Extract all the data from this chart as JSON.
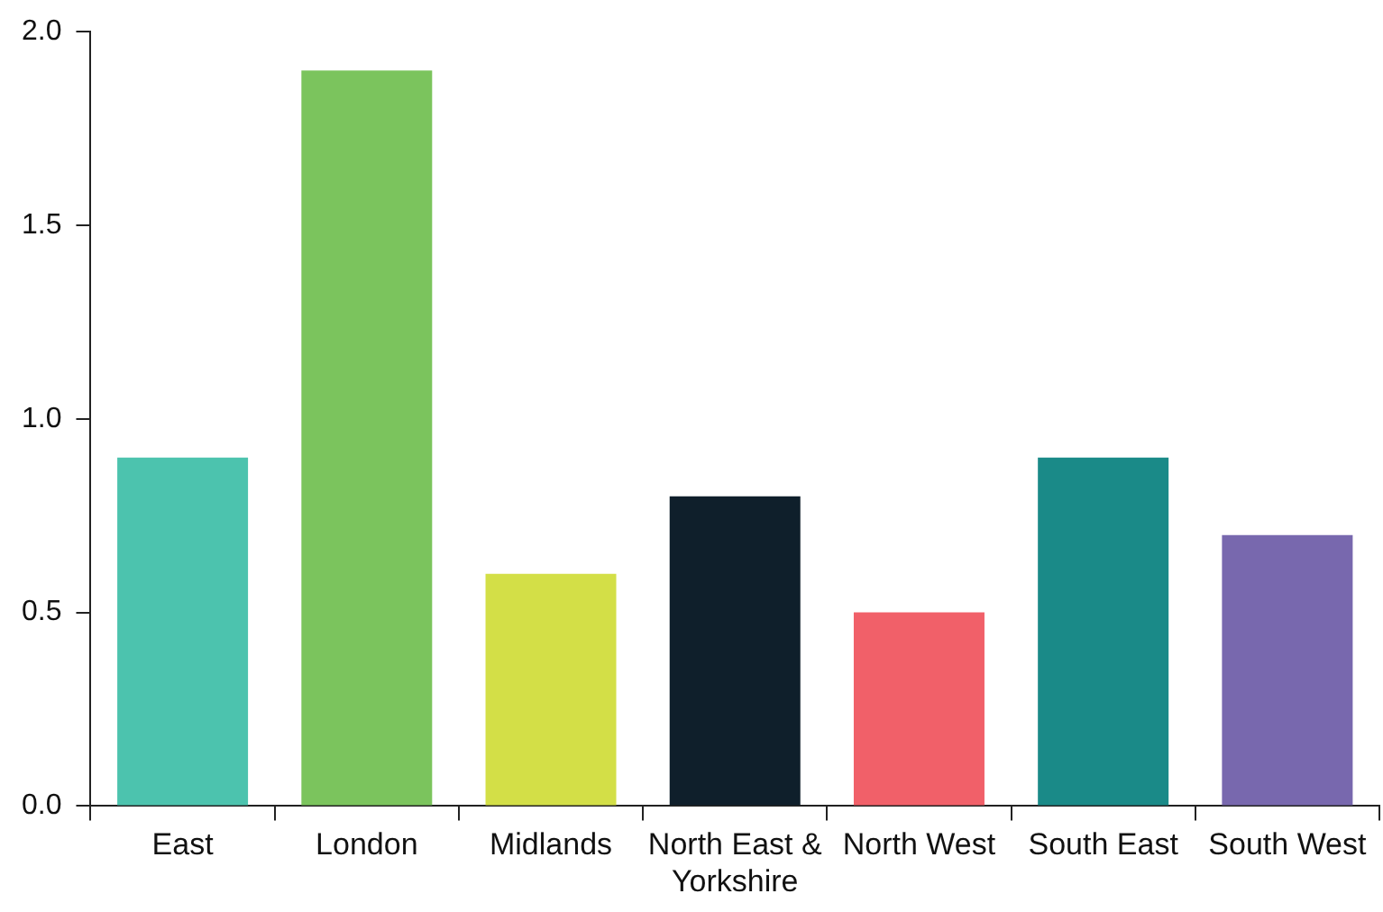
{
  "chart_data": {
    "type": "bar",
    "categories": [
      "East",
      "London",
      "Midlands",
      "North East & Yorkshire",
      "North West",
      "South East",
      "South West"
    ],
    "values": [
      0.9,
      1.9,
      0.6,
      0.8,
      0.5,
      0.9,
      0.7
    ],
    "colors": [
      "#4cc3ae",
      "#7bc45d",
      "#d3df47",
      "#0f1f2b",
      "#f16069",
      "#1a8a88",
      "#7868ae"
    ],
    "ylim": [
      0,
      2
    ],
    "yticks": [
      {
        "value": 0,
        "label": "0.0"
      },
      0.5,
      {
        "value": 1,
        "label": "1.0"
      },
      1.5,
      {
        "value": 2,
        "label": "2.0"
      }
    ],
    "grid": false,
    "legend": false
  }
}
